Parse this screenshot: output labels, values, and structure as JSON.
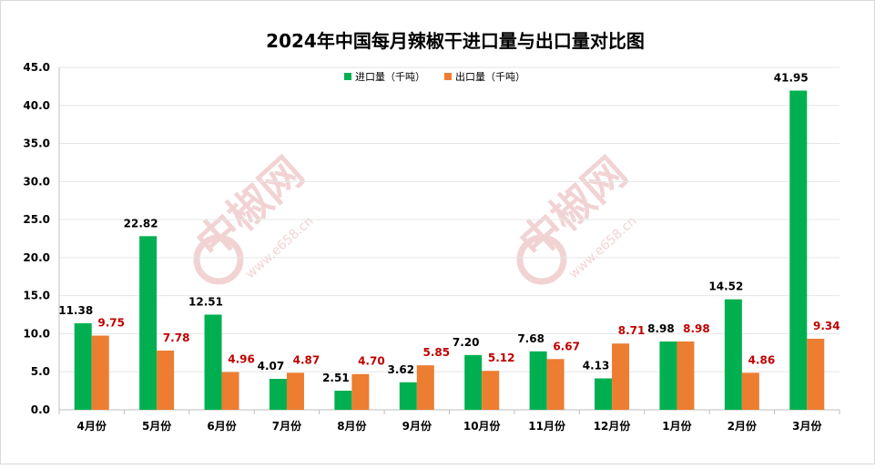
{
  "chart_data": {
    "type": "bar",
    "title": "2024年中国每月辣椒干进口量与出口量对比图",
    "categories": [
      "4月份",
      "5月份",
      "6月份",
      "7月份",
      "8月份",
      "9月份",
      "10月份",
      "11月份",
      "12月份",
      "1月份",
      "2月份",
      "3月份"
    ],
    "series": [
      {
        "name": "进口量（千吨）",
        "color": "#00b050",
        "label_color": "#000000",
        "values": [
          11.38,
          22.82,
          12.51,
          4.07,
          2.51,
          3.62,
          7.2,
          7.68,
          4.13,
          8.98,
          14.52,
          41.95
        ],
        "labels": [
          "11.38",
          "22.82",
          "12.51",
          "4.07",
          "2.51",
          "3.62",
          "7.20",
          "7.68",
          "4.13",
          "8.98",
          "14.52",
          "41.95"
        ]
      },
      {
        "name": "出口量（千吨）",
        "color": "#ed7d31",
        "label_color": "#c00000",
        "values": [
          9.75,
          7.78,
          4.96,
          4.87,
          4.7,
          5.85,
          5.12,
          6.67,
          8.71,
          8.98,
          4.86,
          9.34
        ],
        "labels": [
          "9.75",
          "7.78",
          "4.96",
          "4.87",
          "4.70",
          "5.85",
          "5.12",
          "6.67",
          "8.71",
          "8.98",
          "4.86",
          "9.34"
        ]
      }
    ],
    "ylim": [
      0,
      45
    ],
    "yticks": [
      "0.0",
      "5.0",
      "10.0",
      "15.0",
      "20.0",
      "25.0",
      "30.0",
      "35.0",
      "40.0",
      "45.0"
    ],
    "ytick_values": [
      0,
      5,
      10,
      15,
      20,
      25,
      30,
      35,
      40,
      45
    ],
    "grid": true,
    "legend_position": "top-center",
    "watermark": {
      "name": "中椒网",
      "url": "www.e658.cn",
      "color": "#e8b0b0"
    }
  }
}
